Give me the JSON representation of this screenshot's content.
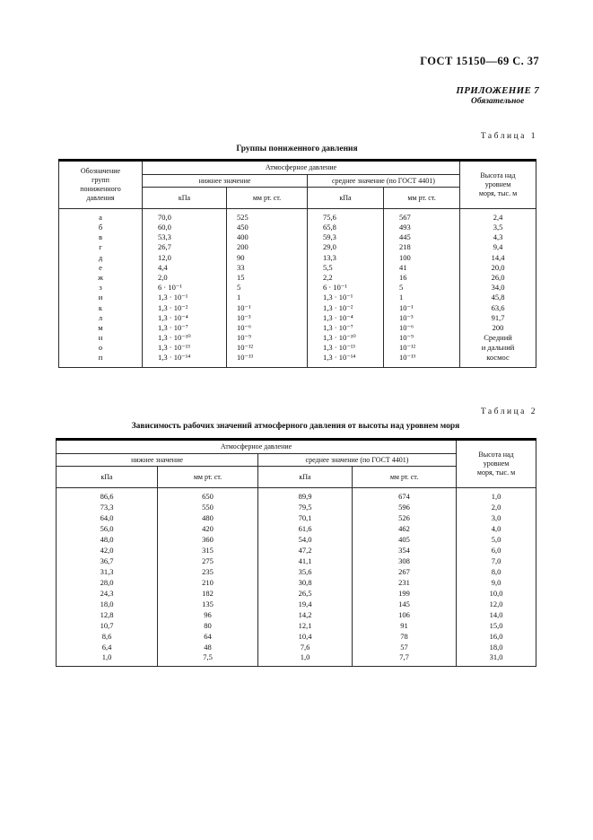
{
  "page": {
    "header": "ГОСТ 15150—69 С. 37",
    "annex": {
      "title": "ПРИЛОЖЕНИЕ 7",
      "subtitle": "Обязательное"
    }
  },
  "table1": {
    "label": "Таблица 1",
    "caption": "Группы пониженного давления",
    "header": {
      "col_designation": "Обозначение\nгрупп\nпониженного\nдавления",
      "col_pressure": "Атмосферное давление",
      "col_lower": "нижнее значение",
      "col_mean": "среднее значение (по ГОСТ 4401)",
      "unit_kpa_lower": "кПа",
      "unit_mmhg_lower": "мм рт. ст.",
      "unit_kpa_mean": "кПа",
      "unit_mmhg_mean": "мм рт. ст.",
      "col_height": "Высота над\nуровнем\nморя, тыс. м"
    },
    "rows": [
      [
        "а",
        "70,0",
        "525",
        "75,6",
        "567",
        "2,4"
      ],
      [
        "б",
        "60,0",
        "450",
        "65,8",
        "493",
        "3,5"
      ],
      [
        "в",
        "53,3",
        "400",
        "59,3",
        "445",
        "4,3"
      ],
      [
        "г",
        "26,7",
        "200",
        "29,0",
        "218",
        "9,4"
      ],
      [
        "д",
        "12,0",
        "90",
        "13,3",
        "100",
        "14,4"
      ],
      [
        "е",
        "4,4",
        "33",
        "5,5",
        "41",
        "20,0"
      ],
      [
        "ж",
        "2,0",
        "15",
        "2,2",
        "16",
        "26,0"
      ],
      [
        "з",
        "6 · 10⁻¹",
        "5",
        "6 · 10⁻¹",
        "5",
        "34,0"
      ],
      [
        "и",
        "1,3 · 10⁻¹",
        "1",
        "1,3 · 10⁻¹",
        "1",
        "45,8"
      ],
      [
        "к",
        "1,3 · 10⁻²",
        "10⁻¹",
        "1,3 · 10⁻²",
        "10⁻¹",
        "63,6"
      ],
      [
        "л",
        "1,3 · 10⁻⁴",
        "10⁻³",
        "1,3 · 10⁻⁴",
        "10⁻³",
        "91,7"
      ],
      [
        "м",
        "1,3 · 10⁻⁷",
        "10⁻⁶",
        "1,3 · 10⁻⁷",
        "10⁻⁶",
        "200"
      ],
      [
        "н",
        "1,3 · 10⁻¹⁰",
        "10⁻⁹",
        "1,3 · 10⁻¹⁰",
        "10⁻⁹",
        "Средний"
      ],
      [
        "о",
        "1,3 · 10⁻¹³",
        "10⁻¹²",
        "1,3 · 10⁻¹³",
        "10⁻¹²",
        "и дальний"
      ],
      [
        "п",
        "1,3 · 10⁻¹⁴",
        "10⁻¹³",
        "1,3 · 10⁻¹⁴",
        "10⁻¹³",
        "космос"
      ]
    ]
  },
  "table2": {
    "label": "Таблица 2",
    "caption": "Зависимость рабочих значений атмосферного давления от высоты над уровнем моря",
    "header": {
      "col_pressure": "Атмосферное давление",
      "col_lower": "нижнее значение",
      "col_mean": "среднее значение (по ГОСТ 4401)",
      "unit_kpa_lower": "кПа",
      "unit_mmhg_lower": "мм рт. ст.",
      "unit_kpa_mean": "кПа",
      "unit_mmhg_mean": "мм рт. ст.",
      "col_height": "Высота над\nуровнем\nморя, тыс. м"
    },
    "rows": [
      [
        "86,6",
        "650",
        "89,9",
        "674",
        "1,0"
      ],
      [
        "73,3",
        "550",
        "79,5",
        "596",
        "2,0"
      ],
      [
        "64,0",
        "480",
        "70,1",
        "526",
        "3,0"
      ],
      [
        "56,0",
        "420",
        "61,6",
        "462",
        "4,0"
      ],
      [
        "48,0",
        "360",
        "54,0",
        "405",
        "5,0"
      ],
      [
        "42,0",
        "315",
        "47,2",
        "354",
        "6,0"
      ],
      [
        "36,7",
        "275",
        "41,1",
        "308",
        "7,0"
      ],
      [
        "31,3",
        "235",
        "35,6",
        "267",
        "8,0"
      ],
      [
        "28,0",
        "210",
        "30,8",
        "231",
        "9,0"
      ],
      [
        "24,3",
        "182",
        "26,5",
        "199",
        "10,0"
      ],
      [
        "18,0",
        "135",
        "19,4",
        "145",
        "12,0"
      ],
      [
        "12,8",
        "96",
        "14,2",
        "106",
        "14,0"
      ],
      [
        "10,7",
        "80",
        "12,1",
        "91",
        "15,0"
      ],
      [
        "8,6",
        "64",
        "10,4",
        "78",
        "16,0"
      ],
      [
        "6,4",
        "48",
        "7,6",
        "57",
        "18,0"
      ],
      [
        "1,0",
        "7,5",
        "1,0",
        "7,7",
        "31,0"
      ]
    ]
  }
}
